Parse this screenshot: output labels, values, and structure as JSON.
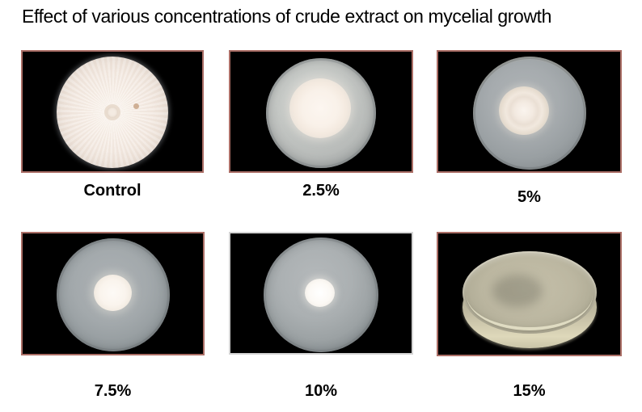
{
  "title": "Effect of various concentrations of crude extract on mycelial growth",
  "panels": [
    {
      "label": "Control"
    },
    {
      "label": "2.5%"
    },
    {
      "label": "5%"
    },
    {
      "label": "7.5%"
    },
    {
      "label": "10%"
    },
    {
      "label": "15%"
    }
  ],
  "colors": {
    "background": "#ffffff",
    "panel_background": "#000000",
    "panel_border": "#ab6e66",
    "panel_border_light": "#d4d4d4",
    "title": "#000000",
    "label": "#000000"
  }
}
